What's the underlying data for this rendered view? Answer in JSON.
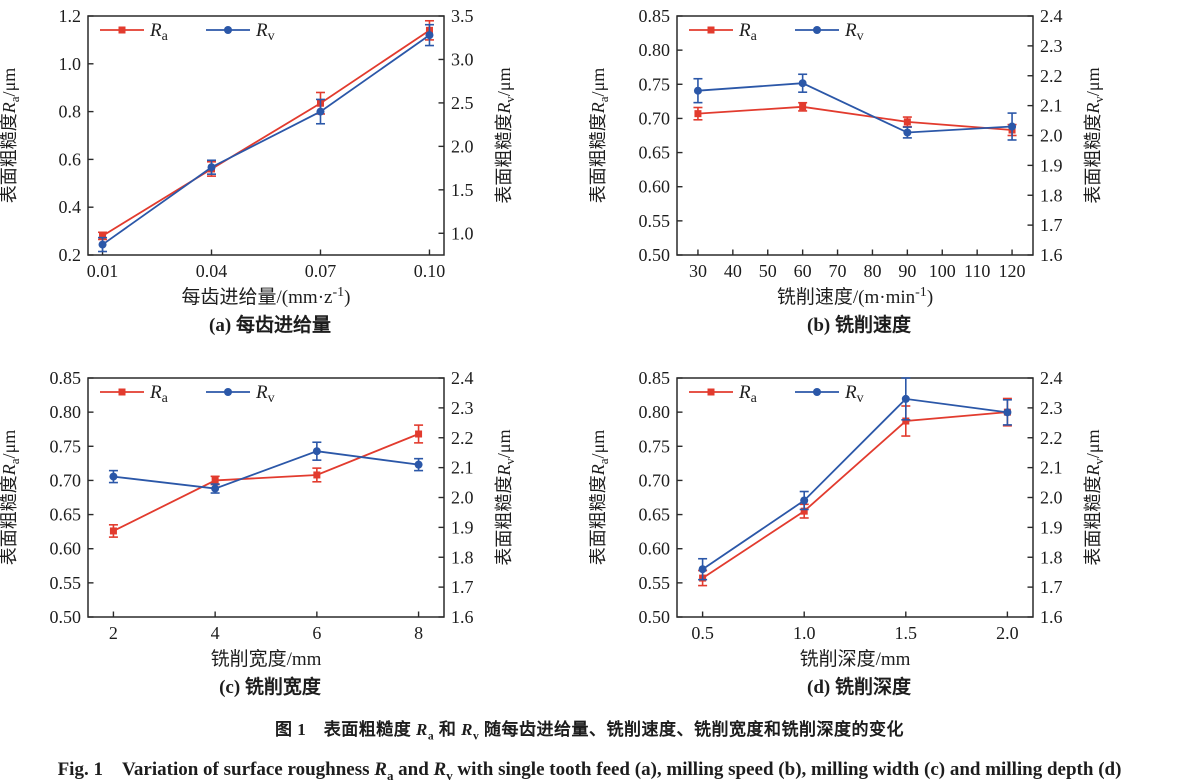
{
  "colors": {
    "ra_red": "#e23b2e",
    "rv_blue": "#2b57a8",
    "axis": "#2a2a2a",
    "text": "#1d1d1d"
  },
  "figure": {
    "caption_zh_segments": [
      {
        "t": "图 1　表面粗糙度 "
      },
      {
        "t": "R",
        "i": true
      },
      {
        "t": "a",
        "sub": true
      },
      {
        "t": " 和 "
      },
      {
        "t": "R",
        "i": true
      },
      {
        "t": "v",
        "sub": true
      },
      {
        "t": " 随每齿进给量、铣削速度、铣削宽度和铣削深度的变化"
      }
    ],
    "caption_en_segments": [
      {
        "t": "Fig. 1　Variation of surface roughness "
      },
      {
        "t": "R",
        "i": true
      },
      {
        "t": "a",
        "sub": true
      },
      {
        "t": " and "
      },
      {
        "t": "R",
        "i": true
      },
      {
        "t": "v",
        "sub": true
      },
      {
        "t": " with single tooth feed (a), milling speed (b), milling width (c) and milling depth (d)"
      }
    ]
  },
  "chart_data": [
    {
      "type": "line",
      "panel": "a",
      "panel_caption": "(a) 每齿进给量",
      "xlabel_segments": [
        {
          "t": "每齿进给量/(mm·z"
        },
        {
          "t": "-1",
          "sup": true
        },
        {
          "t": ")"
        }
      ],
      "xlim": [
        0.006,
        0.104
      ],
      "xticks": [
        0.01,
        0.04,
        0.07,
        0.1
      ],
      "xtick_labels": [
        "0.01",
        "0.04",
        "0.07",
        "0.10"
      ],
      "left_axis": {
        "label_segments": [
          {
            "t": "表面粗糙度"
          },
          {
            "t": "R",
            "i": true
          },
          {
            "t": "a",
            "sub": true
          },
          {
            "t": "/μm"
          }
        ],
        "lim": [
          0.2,
          1.2
        ],
        "ticks": [
          0.2,
          0.4,
          0.6,
          0.8,
          1.0,
          1.2
        ],
        "tick_labels": [
          "0.2",
          "0.4",
          "0.6",
          "0.8",
          "1.0",
          "1.2"
        ]
      },
      "right_axis": {
        "label_segments": [
          {
            "t": "表面粗糙度"
          },
          {
            "t": "R",
            "i": true
          },
          {
            "t": "v",
            "sub": true
          },
          {
            "t": "/μm"
          }
        ],
        "lim": [
          0.75,
          3.5
        ],
        "ticks": [
          1.0,
          1.5,
          2.0,
          2.5,
          3.0,
          3.5
        ],
        "tick_labels": [
          "1.0",
          "1.5",
          "2.0",
          "2.5",
          "3.0",
          "3.5"
        ]
      },
      "x": [
        0.01,
        0.04,
        0.07,
        0.1
      ],
      "series": [
        {
          "key": "Ra",
          "label_segments": [
            {
              "t": "R",
              "i": true
            },
            {
              "t": "a",
              "sub": true
            }
          ],
          "axis": "left",
          "marker": "square",
          "color": "#e23b2e",
          "y": [
            0.28,
            0.56,
            0.835,
            1.14
          ],
          "yerr": [
            0.015,
            0.03,
            0.045,
            0.04
          ]
        },
        {
          "key": "Rv",
          "label_segments": [
            {
              "t": "R",
              "i": true
            },
            {
              "t": "v",
              "sub": true
            }
          ],
          "axis": "right",
          "marker": "circle",
          "color": "#2b57a8",
          "y": [
            0.87,
            1.76,
            2.4,
            3.28
          ],
          "yerr": [
            0.08,
            0.08,
            0.14,
            0.12
          ]
        }
      ]
    },
    {
      "type": "line",
      "panel": "b",
      "panel_caption": "(b) 铣削速度",
      "xlabel_segments": [
        {
          "t": "铣削速度/(m·min"
        },
        {
          "t": "-1",
          "sup": true
        },
        {
          "t": ")"
        }
      ],
      "xlim": [
        24,
        126
      ],
      "xticks": [
        30,
        40,
        50,
        60,
        70,
        80,
        90,
        100,
        110,
        120
      ],
      "xtick_labels": [
        "30",
        "40",
        "50",
        "60",
        "70",
        "80",
        "90",
        "100",
        "110",
        "120"
      ],
      "left_axis": {
        "label_segments": [
          {
            "t": "表面粗糙度"
          },
          {
            "t": "R",
            "i": true
          },
          {
            "t": "a",
            "sub": true
          },
          {
            "t": "/μm"
          }
        ],
        "lim": [
          0.5,
          0.85
        ],
        "ticks": [
          0.5,
          0.55,
          0.6,
          0.65,
          0.7,
          0.75,
          0.8,
          0.85
        ],
        "tick_labels": [
          "0.50",
          "0.55",
          "0.60",
          "0.65",
          "0.70",
          "0.75",
          "0.80",
          "0.85"
        ]
      },
      "right_axis": {
        "label_segments": [
          {
            "t": "表面粗糙度"
          },
          {
            "t": "R",
            "i": true
          },
          {
            "t": "v",
            "sub": true
          },
          {
            "t": "/μm"
          }
        ],
        "lim": [
          1.6,
          2.4
        ],
        "ticks": [
          1.6,
          1.7,
          1.8,
          1.9,
          2.0,
          2.1,
          2.2,
          2.3,
          2.4
        ],
        "tick_labels": [
          "1.6",
          "1.7",
          "1.8",
          "1.9",
          "2.0",
          "2.1",
          "2.2",
          "2.3",
          "2.4"
        ]
      },
      "x": [
        30,
        60,
        90,
        120
      ],
      "series": [
        {
          "key": "Ra",
          "label_segments": [
            {
              "t": "R",
              "i": true
            },
            {
              "t": "a",
              "sub": true
            }
          ],
          "axis": "left",
          "marker": "square",
          "color": "#e23b2e",
          "y": [
            0.707,
            0.717,
            0.695,
            0.683
          ],
          "yerr": [
            0.009,
            0.006,
            0.007,
            0.008
          ]
        },
        {
          "key": "Rv",
          "label_segments": [
            {
              "t": "R",
              "i": true
            },
            {
              "t": "v",
              "sub": true
            }
          ],
          "axis": "right",
          "marker": "circle",
          "color": "#2b57a8",
          "y": [
            2.15,
            2.175,
            2.01,
            2.03
          ],
          "yerr": [
            0.04,
            0.03,
            0.018,
            0.045
          ]
        }
      ]
    },
    {
      "type": "line",
      "panel": "c",
      "panel_caption": "(c) 铣削宽度",
      "xlabel_segments": [
        {
          "t": "铣削宽度/mm"
        }
      ],
      "xlim": [
        1.5,
        8.5
      ],
      "xticks": [
        2,
        4,
        6,
        8
      ],
      "xtick_labels": [
        "2",
        "4",
        "6",
        "8"
      ],
      "left_axis": {
        "label_segments": [
          {
            "t": "表面粗糙度"
          },
          {
            "t": "R",
            "i": true
          },
          {
            "t": "a",
            "sub": true
          },
          {
            "t": "/μm"
          }
        ],
        "lim": [
          0.5,
          0.85
        ],
        "ticks": [
          0.5,
          0.55,
          0.6,
          0.65,
          0.7,
          0.75,
          0.8,
          0.85
        ],
        "tick_labels": [
          "0.50",
          "0.55",
          "0.60",
          "0.65",
          "0.70",
          "0.75",
          "0.80",
          "0.85"
        ]
      },
      "right_axis": {
        "label_segments": [
          {
            "t": "表面粗糙度"
          },
          {
            "t": "R",
            "i": true
          },
          {
            "t": "v",
            "sub": true
          },
          {
            "t": "/μm"
          }
        ],
        "lim": [
          1.6,
          2.4
        ],
        "ticks": [
          1.6,
          1.7,
          1.8,
          1.9,
          2.0,
          2.1,
          2.2,
          2.3,
          2.4
        ],
        "tick_labels": [
          "1.6",
          "1.7",
          "1.8",
          "1.9",
          "2.0",
          "2.1",
          "2.2",
          "2.3",
          "2.4"
        ]
      },
      "x": [
        2,
        4,
        6,
        8
      ],
      "series": [
        {
          "key": "Ra",
          "label_segments": [
            {
              "t": "R",
              "i": true
            },
            {
              "t": "a",
              "sub": true
            }
          ],
          "axis": "left",
          "marker": "square",
          "color": "#e23b2e",
          "y": [
            0.626,
            0.7,
            0.708,
            0.768
          ],
          "yerr": [
            0.009,
            0.006,
            0.01,
            0.013
          ]
        },
        {
          "key": "Rv",
          "label_segments": [
            {
              "t": "R",
              "i": true
            },
            {
              "t": "v",
              "sub": true
            }
          ],
          "axis": "right",
          "marker": "circle",
          "color": "#2b57a8",
          "y": [
            2.07,
            2.03,
            2.155,
            2.11
          ],
          "yerr": [
            0.02,
            0.015,
            0.03,
            0.02
          ]
        }
      ]
    },
    {
      "type": "line",
      "panel": "d",
      "panel_caption": "(d) 铣削深度",
      "xlabel_segments": [
        {
          "t": "铣削深度/mm"
        }
      ],
      "xlim": [
        0.374,
        2.126
      ],
      "xticks": [
        0.5,
        1.0,
        1.5,
        2.0
      ],
      "xtick_labels": [
        "0.5",
        "1.0",
        "1.5",
        "2.0"
      ],
      "left_axis": {
        "label_segments": [
          {
            "t": "表面粗糙度"
          },
          {
            "t": "R",
            "i": true
          },
          {
            "t": "a",
            "sub": true
          },
          {
            "t": "/μm"
          }
        ],
        "lim": [
          0.5,
          0.85
        ],
        "ticks": [
          0.5,
          0.55,
          0.6,
          0.65,
          0.7,
          0.75,
          0.8,
          0.85
        ],
        "tick_labels": [
          "0.50",
          "0.55",
          "0.60",
          "0.65",
          "0.70",
          "0.75",
          "0.80",
          "0.85"
        ]
      },
      "right_axis": {
        "label_segments": [
          {
            "t": "表面粗糙度"
          },
          {
            "t": "R",
            "i": true
          },
          {
            "t": "v",
            "sub": true
          },
          {
            "t": "/μm"
          }
        ],
        "lim": [
          1.6,
          2.4
        ],
        "ticks": [
          1.6,
          1.7,
          1.8,
          1.9,
          2.0,
          2.1,
          2.2,
          2.3,
          2.4
        ],
        "tick_labels": [
          "1.6",
          "1.7",
          "1.8",
          "1.9",
          "2.0",
          "2.1",
          "2.2",
          "2.3",
          "2.4"
        ]
      },
      "x": [
        0.5,
        1.0,
        1.5,
        2.0
      ],
      "series": [
        {
          "key": "Ra",
          "label_segments": [
            {
              "t": "R",
              "i": true
            },
            {
              "t": "a",
              "sub": true
            }
          ],
          "axis": "left",
          "marker": "square",
          "color": "#e23b2e",
          "y": [
            0.557,
            0.655,
            0.787,
            0.8
          ],
          "yerr": [
            0.011,
            0.01,
            0.022,
            0.02
          ]
        },
        {
          "key": "Rv",
          "label_segments": [
            {
              "t": "R",
              "i": true
            },
            {
              "t": "v",
              "sub": true
            }
          ],
          "axis": "right",
          "marker": "circle",
          "color": "#2b57a8",
          "y": [
            1.76,
            1.99,
            2.33,
            2.285
          ],
          "yerr": [
            0.035,
            0.03,
            0.07,
            0.042
          ]
        }
      ]
    }
  ]
}
